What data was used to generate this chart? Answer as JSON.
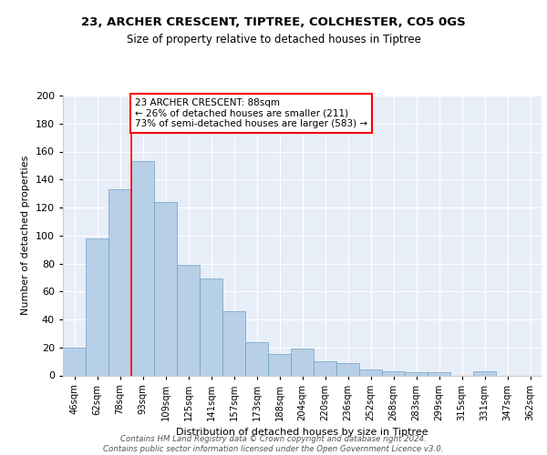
{
  "title1": "23, ARCHER CRESCENT, TIPTREE, COLCHESTER, CO5 0GS",
  "title2": "Size of property relative to detached houses in Tiptree",
  "xlabel": "Distribution of detached houses by size in Tiptree",
  "ylabel": "Number of detached properties",
  "bar_labels": [
    "46sqm",
    "62sqm",
    "78sqm",
    "93sqm",
    "109sqm",
    "125sqm",
    "141sqm",
    "157sqm",
    "173sqm",
    "188sqm",
    "204sqm",
    "220sqm",
    "236sqm",
    "252sqm",
    "268sqm",
    "283sqm",
    "299sqm",
    "315sqm",
    "331sqm",
    "347sqm",
    "362sqm"
  ],
  "bar_values": [
    20,
    98,
    133,
    153,
    124,
    79,
    69,
    46,
    24,
    15,
    19,
    10,
    9,
    4,
    3,
    2,
    2,
    0,
    3,
    0,
    0
  ],
  "bar_color": "#b8cfe8",
  "bar_edge_color": "#6e9fc5",
  "background_color": "#e8eef8",
  "grid_color": "#ffffff",
  "vline_x": 2.5,
  "vline_color": "red",
  "annotation_text": "23 ARCHER CRESCENT: 88sqm\n← 26% of detached houses are smaller (211)\n73% of semi-detached houses are larger (583) →",
  "annotation_box_color": "white",
  "annotation_box_edge": "red",
  "footer": "Contains HM Land Registry data © Crown copyright and database right 2024.\nContains public sector information licensed under the Open Government Licence v3.0.",
  "ylim": [
    0,
    200
  ],
  "yticks": [
    0,
    20,
    40,
    60,
    80,
    100,
    120,
    140,
    160,
    180,
    200
  ]
}
